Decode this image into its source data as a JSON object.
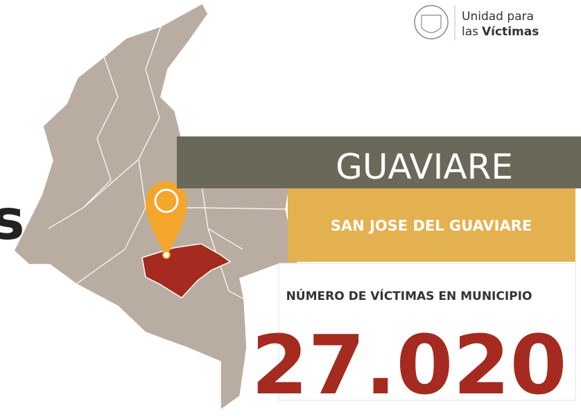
{
  "logo": {
    "line1": "Unidad para",
    "line2_prefix": "las",
    "line2_bold": "Víctimas"
  },
  "edge_text": "s",
  "department": "GUAVIARE",
  "municipality": "SAN JOSE DEL GUAVIARE",
  "label": "NÚMERO DE VÍCTIMAS EN MUNICIPIO",
  "count": "27.020"
}
